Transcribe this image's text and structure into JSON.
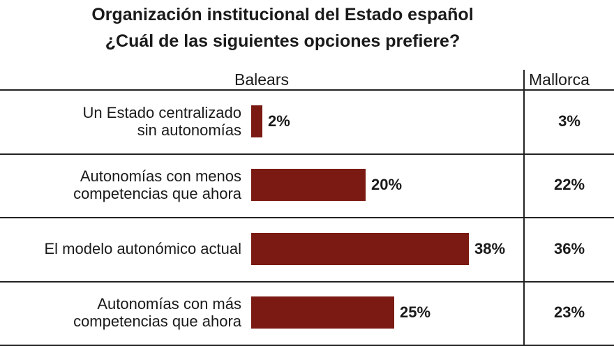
{
  "chart_data": {
    "type": "bar",
    "orientation": "horizontal",
    "title": "Organización institucional del Estado español",
    "subtitle": "¿Cuál de las siguientes opciones prefiere?",
    "categories": [
      [
        "Un Estado centralizado",
        "sin autonomías"
      ],
      [
        "Autonomías con menos",
        "competencias que ahora"
      ],
      [
        "El modelo autonómico actual"
      ],
      [
        "Autonomías con más",
        "competencias que ahora"
      ]
    ],
    "series": [
      {
        "name": "Balears",
        "values": [
          2,
          20,
          38,
          25
        ],
        "labels": [
          "2%",
          "20%",
          "38%",
          "25%"
        ]
      },
      {
        "name": "Mallorca",
        "values": [
          3,
          22,
          36,
          23
        ],
        "labels": [
          "3%",
          "22%",
          "36%",
          "23%"
        ]
      }
    ],
    "xlim": [
      0,
      100
    ],
    "grid": false,
    "bar_color": "#7a1a12"
  }
}
